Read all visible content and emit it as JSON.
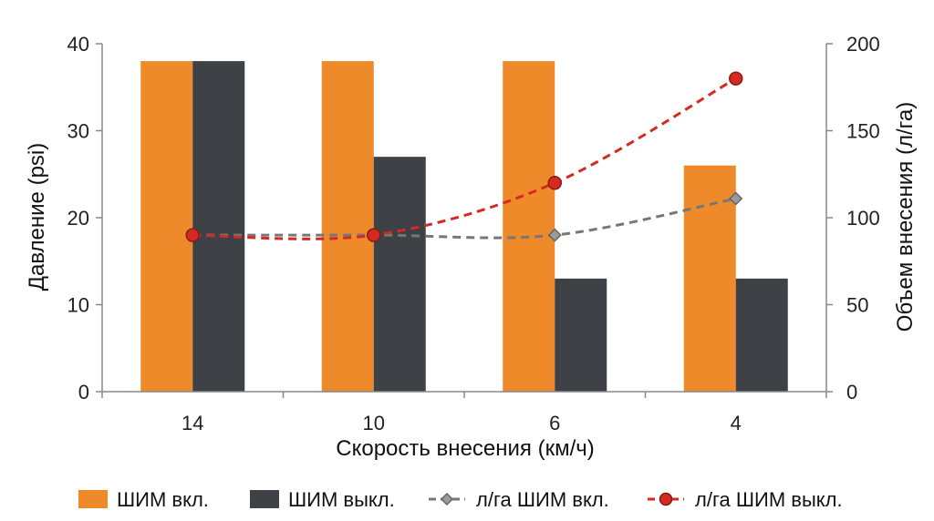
{
  "chart_data": {
    "type": "bar",
    "categories": [
      "14",
      "10",
      "6",
      "4"
    ],
    "xlabel": "Скорость внесения (км/ч)",
    "ylabel_left": "Давление (psi)",
    "ylabel_right": "Объем внесения (л/га)",
    "ylim_left": [
      0,
      40
    ],
    "ylim_right": [
      0,
      200
    ],
    "yticks_left": [
      "0",
      "10",
      "20",
      "30",
      "40"
    ],
    "yticks_right": [
      "0",
      "50",
      "100",
      "150",
      "200"
    ],
    "legend_position": "bottom",
    "bar_series": [
      {
        "name": "ШИМ вкл.",
        "values": [
          38,
          38,
          38,
          26
        ],
        "color": "#ee8a2a"
      },
      {
        "name": "ШИМ выкл.",
        "values": [
          38,
          27,
          13,
          13
        ],
        "color": "#3e4146"
      }
    ],
    "line_series": [
      {
        "name": "л/га ШИМ вкл.",
        "values": [
          90,
          90,
          90,
          111
        ],
        "color": "#777777",
        "marker": "diamond",
        "axis": "right"
      },
      {
        "name": "л/га ШИМ выкл.",
        "values": [
          90,
          90,
          120,
          180
        ],
        "color": "#d42a22",
        "marker": "circle",
        "axis": "right"
      }
    ],
    "grid": false
  }
}
